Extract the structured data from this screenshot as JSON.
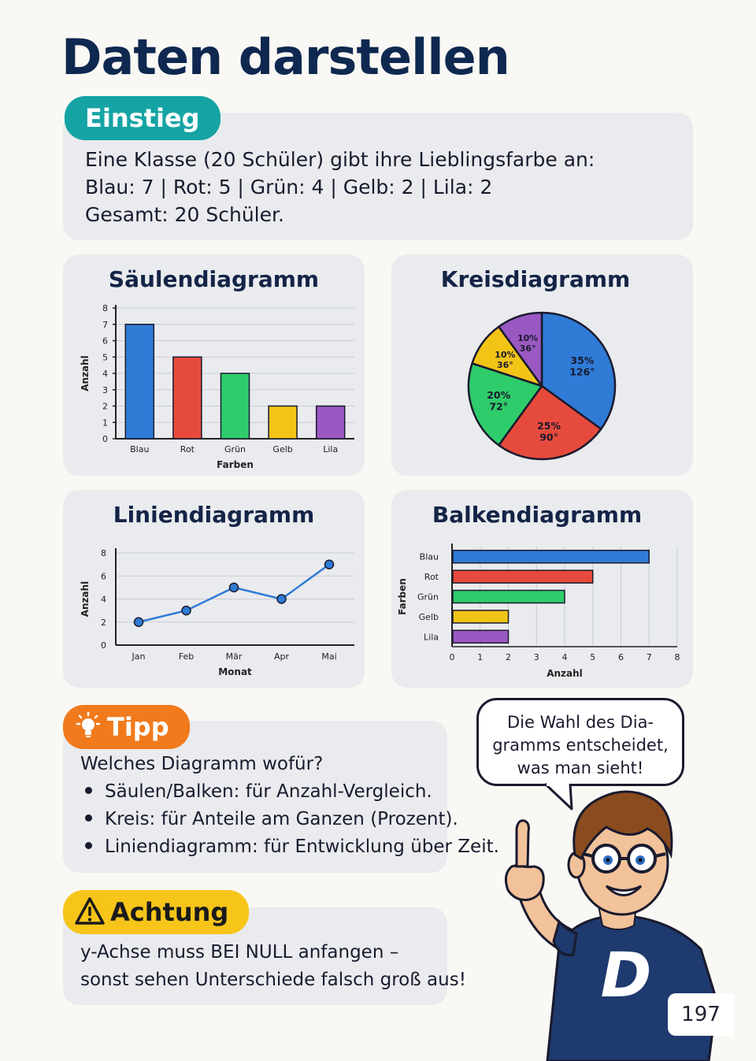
{
  "page_title": "Daten darstellen",
  "intro": {
    "badge": "Einstieg",
    "line1": "Eine Klasse (20 Schüler) gibt ihre Lieblingsfarbe an:",
    "line2": "Blau: 7 | Rot: 5 | Grün: 4 | Gelb: 2 | Lila: 2",
    "line3": "Gesamt: 20 Schüler."
  },
  "colors": {
    "blue": "#2f7bd6",
    "red": "#e64a3c",
    "green": "#2ecc6a",
    "yellow": "#f2c416",
    "purple": "#9a59c2"
  },
  "chart_data": [
    {
      "type": "bar",
      "title": "Säulendiagramm",
      "categories": [
        "Blau",
        "Rot",
        "Grün",
        "Gelb",
        "Lila"
      ],
      "values": [
        7,
        5,
        4,
        2,
        2
      ],
      "xlabel": "Farben",
      "ylabel": "Anzahl",
      "ylim": [
        0,
        8
      ],
      "yticks": [
        "0",
        "1",
        "2",
        "3",
        "4",
        "5",
        "6",
        "7",
        "8"
      ],
      "grid": true
    },
    {
      "type": "pie",
      "title": "Kreisdiagramm",
      "slices": [
        {
          "label": "Blau",
          "value": 35,
          "percent": "35%",
          "degrees": "126°"
        },
        {
          "label": "Rot",
          "value": 25,
          "percent": "25%",
          "degrees": "90°"
        },
        {
          "label": "Grün",
          "value": 20,
          "percent": "20%",
          "degrees": "72°"
        },
        {
          "label": "Gelb",
          "value": 10,
          "percent": "10%",
          "degrees": "36°"
        },
        {
          "label": "Lila",
          "value": 10,
          "percent": "10%",
          "degrees": "36°"
        }
      ]
    },
    {
      "type": "line",
      "title": "Liniendiagramm",
      "x": [
        "Jan",
        "Feb",
        "Mär",
        "Apr",
        "Mai"
      ],
      "values": [
        2,
        3,
        5,
        4,
        7
      ],
      "xlabel": "Monat",
      "ylabel": "Anzahl",
      "ylim": [
        0,
        8
      ],
      "yticks": [
        "0",
        "2",
        "4",
        "6",
        "8"
      ],
      "grid": true
    },
    {
      "type": "bar",
      "orientation": "horizontal",
      "title": "Balkendiagramm",
      "categories": [
        "Blau",
        "Rot",
        "Grün",
        "Gelb",
        "Lila"
      ],
      "values": [
        7,
        5,
        4,
        2,
        2
      ],
      "xlabel": "Anzahl",
      "ylabel": "Farben",
      "xlim": [
        0,
        8
      ],
      "xticks": [
        "0",
        "1",
        "2",
        "3",
        "4",
        "5",
        "6",
        "7",
        "8"
      ],
      "grid": true
    }
  ],
  "tip": {
    "badge": "Tipp",
    "icon": "lightbulb-icon",
    "question": "Welches Diagramm wofür?",
    "bullets": [
      "Säulen/Balken: für Anzahl-Vergleich.",
      "Kreis: für Anteile am Ganzen (Prozent).",
      "Liniendiagramm: für Entwicklung über Zeit."
    ]
  },
  "warning": {
    "badge": "Achtung",
    "icon": "warning-triangle-icon",
    "line1": "y-Achse muss BEI NULL anfangen –",
    "line2": "sonst sehen Unterschiede falsch groß aus!"
  },
  "speech": {
    "line1": "Die Wahl des Dia-",
    "line2": "gramms entscheidet,",
    "line3": "was man sieht!"
  },
  "mascot": {
    "shirt_letter": "D"
  },
  "page_number": "197"
}
